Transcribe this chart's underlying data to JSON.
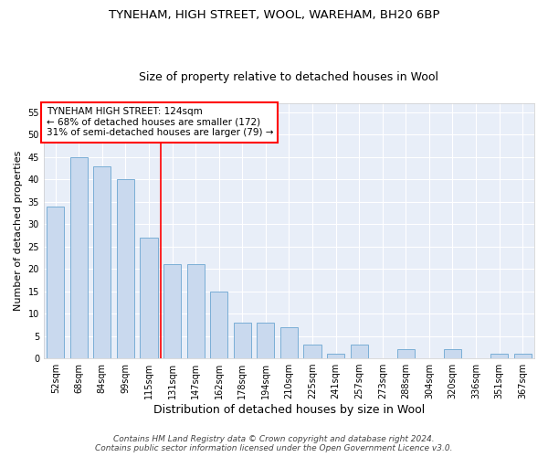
{
  "title1": "TYNEHAM, HIGH STREET, WOOL, WAREHAM, BH20 6BP",
  "title2": "Size of property relative to detached houses in Wool",
  "xlabel": "Distribution of detached houses by size in Wool",
  "ylabel": "Number of detached properties",
  "categories": [
    "52sqm",
    "68sqm",
    "84sqm",
    "99sqm",
    "115sqm",
    "131sqm",
    "147sqm",
    "162sqm",
    "178sqm",
    "194sqm",
    "210sqm",
    "225sqm",
    "241sqm",
    "257sqm",
    "273sqm",
    "288sqm",
    "304sqm",
    "320sqm",
    "336sqm",
    "351sqm",
    "367sqm"
  ],
  "values": [
    34,
    45,
    43,
    40,
    27,
    21,
    21,
    15,
    8,
    8,
    7,
    3,
    1,
    3,
    0,
    2,
    0,
    2,
    0,
    1,
    1
  ],
  "bar_color": "#c9d9ee",
  "bar_edge_color": "#7aaed6",
  "background_color": "#e8eef8",
  "grid_color": "#ffffff",
  "vline_x": 5.0,
  "vline_color": "red",
  "annotation_title": "TYNEHAM HIGH STREET: 124sqm",
  "annotation_line1": "← 68% of detached houses are smaller (172)",
  "annotation_line2": "31% of semi-detached houses are larger (79) →",
  "ylim": [
    0,
    57
  ],
  "yticks": [
    0,
    5,
    10,
    15,
    20,
    25,
    30,
    35,
    40,
    45,
    50,
    55
  ],
  "footer1": "Contains HM Land Registry data © Crown copyright and database right 2024.",
  "footer2": "Contains public sector information licensed under the Open Government Licence v3.0.",
  "title1_fontsize": 9.5,
  "title2_fontsize": 9,
  "xlabel_fontsize": 9,
  "ylabel_fontsize": 8,
  "tick_fontsize": 7,
  "annotation_fontsize": 7.5,
  "footer_fontsize": 6.5,
  "bar_width": 0.75
}
